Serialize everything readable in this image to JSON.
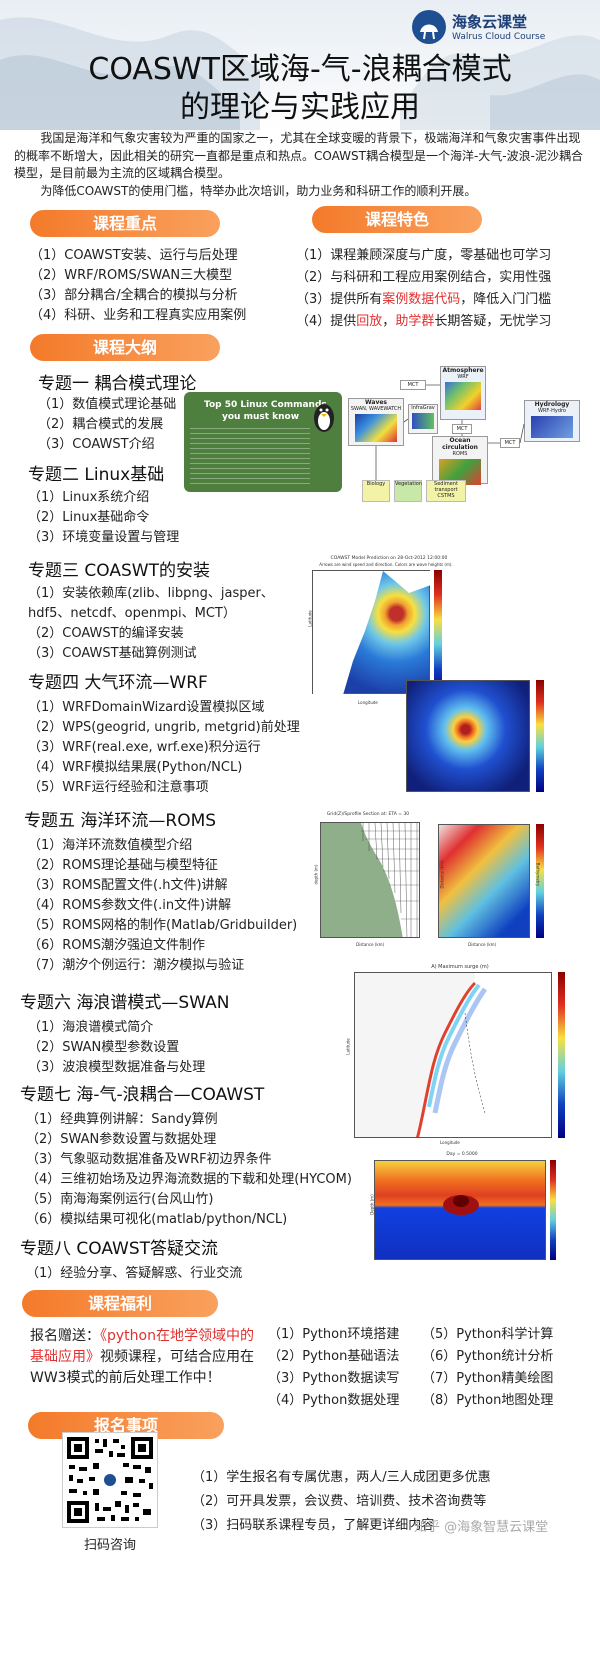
{
  "logo": {
    "name": "海象云课堂",
    "sub": "Walrus Cloud Course"
  },
  "title": {
    "line1": "COASWT区域海-气-浪耦合模式",
    "line2": "的理论与实践应用"
  },
  "intro": {
    "p1": "我国是海洋和气象灾害较为严重的国家之一，尤其在全球变暖的背景下，极端海洋和气象灾害事件出现的概率不断增大，因此相关的研究一直都是重点和热点。COAWST耦合模型是一个海洋-大气-波浪-泥沙耦合模型，是目前最为主流的区域耦合模型。",
    "p2": "为降低COAWST的使用门槛，特举办此次培训，助力业务和科研工作的顺利开展。"
  },
  "focus": {
    "label": "课程重点",
    "items": [
      "（1）COAWST安装、运行与后处理",
      "（2）WRF/ROMS/SWAN三大模型",
      "（3）部分耦合/全耦合的模拟与分析",
      "（4）科研、业务和工程真实应用案例"
    ]
  },
  "features": {
    "label": "课程特色",
    "items": [
      {
        "pre": "（1）课程兼顾深度与广度，零基础也可学习",
        "red": "",
        "post": ""
      },
      {
        "pre": "（2）与科研和工程应用案例结合，实用性强",
        "red": "",
        "post": ""
      },
      {
        "pre": "（3）提供所有",
        "red": "案例数据代码",
        "post": "，降低入门门槛"
      },
      {
        "pre": "（4）提供",
        "red": "回放",
        "mid": "，",
        "red2": "助学群",
        "post": "长期答疑，无忧学习"
      }
    ]
  },
  "outline": {
    "label": "课程大纲"
  },
  "topics": [
    {
      "title": "专题一 耦合模式理论",
      "items": [
        "（1）数值模式理论基础",
        "（2）耦合模式的发展",
        "（3）COAWST介绍"
      ]
    },
    {
      "title": "专题二 Linux基础",
      "items": [
        "（1）Linux系统介绍",
        "（2）Linux基础命令",
        "（3）环境变量设置与管理"
      ]
    },
    {
      "title": "专题三 COASWT的安装",
      "items": [
        "（1）安装依赖库(zlib、libpng、jasper、",
        "hdf5、netcdf、openmpi、MCT）",
        "（2）COAWST的编译安装",
        "（3）COAWST基础算例测试"
      ]
    },
    {
      "title": "专题四 大气环流—WRF",
      "items": [
        "（1）WRFDomainWizard设置模拟区域",
        "（2）WPS(geogrid, ungrib, metgrid)前处理",
        "（3）WRF(real.exe, wrf.exe)积分运行",
        "（4）WRF模拟结果展(Python/NCL)",
        "（5）WRF运行经验和注意事项"
      ]
    },
    {
      "title": "专题五 海洋环流—ROMS",
      "items": [
        "（1）海洋环流数值模型介绍",
        "（2）ROMS理论基础与模型特征",
        "（3）ROMS配置文件(.h文件)讲解",
        "（4）ROMS参数文件(.in文件)讲解",
        "（5）ROMS网格的制作(Matlab/Gridbuilder)",
        "（6）ROMS潮汐强迫文件制作",
        "（7）潮汐个例运行：潮汐模拟与验证"
      ]
    },
    {
      "title": "专题六 海浪谱模式—SWAN",
      "items": [
        "（1）海浪谱模式简介",
        "（2）SWAN模型参数设置",
        "（3）波浪模型数据准备与处理"
      ]
    },
    {
      "title": "专题七 海-气-浪耦合—COAWST",
      "items": [
        "（1）经典算例讲解：Sandy算例",
        "（2）SWAN参数设置与数据处理",
        "（3）气象驱动数据准备及WRF初边界条件",
        "（4）三维初始场及边界海流数据的下载和处理(HYCOM)",
        "（5）南海海案例运行(台风山竹)",
        "（6）模拟结果可视化(matlab/python/NCL)"
      ]
    },
    {
      "title": "专题八 COAWST答疑交流",
      "items": [
        "（1）经验分享、答疑解惑、行业交流"
      ]
    }
  ],
  "linux_card": {
    "title1": "Top 50 Linux Commands",
    "title2": "you must know"
  },
  "coupling": {
    "atm": "Atmosphere",
    "atm_model": "WRF",
    "waves": "Waves",
    "waves_model": "SWAN, WAVEWATCH",
    "infrac": "InfraGrav",
    "ocean": "Ocean circulation",
    "ocean_model": "ROMS",
    "hydro": "Hydrology",
    "hydro_model": "WRF-Hydro",
    "biology": "Biology",
    "vegetation": "Vegetation",
    "sediment": "Sediment transport",
    "sediment_model": "CSTMS",
    "mct": "MCT"
  },
  "fig3": {
    "title": "COAWST Model Prediction on 28-Oct-2012 12:00:00",
    "subtitle": "Arrows are wind speed and direction. Colors are wave heights (m).",
    "xlabel": "Longitude",
    "ylabel": "Latitude"
  },
  "fig5": {
    "title": "Grid(Z)/Sprofile Section at: ETA = 30",
    "xlabel": "Distance (km)",
    "ylabel": "depth (m)",
    "xlabel2": "Distance (km)",
    "ylabel2": "Distance (km)",
    "cblabel": "Bathymetry"
  },
  "fig6": {
    "title": "A) Maximum surge (m)",
    "xlabel": "Longitude",
    "ylabel": "Latitude"
  },
  "fig7": {
    "title": "Day = 0.5000",
    "ylabel": "Depth (m)"
  },
  "welfare": {
    "label": "课程福利",
    "gift_pre": "报名赠送：",
    "gift_red": "《python在地学领域中的基础应用》",
    "gift_post": "视频课程，可结合应用在WW3模式的前后处理工作中！",
    "col1": [
      "（1）Python环境搭建",
      "（2）Python基础语法",
      "（3）Python数据读写",
      "（4）Python数据处理"
    ],
    "col2": [
      "（5）Python科学计算",
      "（6）Python统计分析",
      "（7）Python精美绘图",
      "（8）Python地图处理"
    ]
  },
  "signup": {
    "label": "报名事项",
    "items": [
      "（1）学生报名有专属优惠，两人/三人成团更多优惠",
      "（2）可开具发票，会议费、培训费、技术咨询费等",
      "（3）扫码联系课程专员，了解更详细内容"
    ],
    "qr_label": "扫码咨询",
    "watermark": "知乎 @海象智慧云课堂"
  }
}
